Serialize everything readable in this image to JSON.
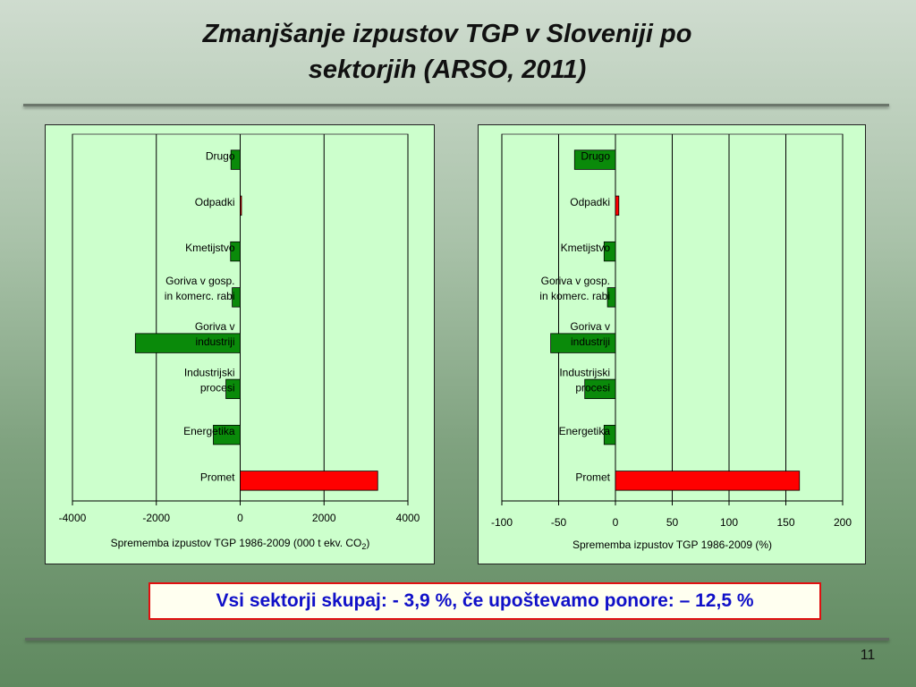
{
  "slide": {
    "title_line1": "Zmanjšanje izpustov TGP v Sloveniji po",
    "title_line2": "sektorjih (ARSO, 2011)",
    "summary": "Vsi sektorji skupaj: - 3,9 %, če upoštevamo ponore: – 12,5 %",
    "page_number": "11"
  },
  "colors": {
    "negative": "#0a8a0a",
    "positive": "#ff0000",
    "panel_bg": "#ccffcc"
  },
  "chart_data": [
    {
      "type": "bar",
      "orientation": "horizontal",
      "categories": [
        "Drugo",
        "Odpadki",
        "Kmetijstvo",
        "Goriva v gosp. in komerc. rabi",
        "Goriva v industriji",
        "Industrijski procesi",
        "Energetika",
        "Promet"
      ],
      "category_lines": [
        [
          "Drugo"
        ],
        [
          "Odpadki"
        ],
        [
          "Kmetijstvo"
        ],
        [
          "Goriva v gosp.",
          "in komerc. rabi"
        ],
        [
          "Goriva v",
          "industriji"
        ],
        [
          "Industrijski",
          "procesi"
        ],
        [
          "Energetika"
        ],
        [
          "Promet"
        ]
      ],
      "values": [
        -220,
        20,
        -230,
        -190,
        -2500,
        -340,
        -640,
        3280
      ],
      "xlabel": "Sprememba izpustov TGP 1986-2009 (000 t ekv. CO",
      "xlabel_sub": "2",
      "xlabel_end": ")",
      "xlim": [
        -4000,
        4000
      ],
      "xticks": [
        -4000,
        -2000,
        0,
        2000,
        4000
      ],
      "xtick_labels": [
        "-4000",
        "-2000",
        "0",
        "2000",
        "4000"
      ],
      "grid": true
    },
    {
      "type": "bar",
      "orientation": "horizontal",
      "categories": [
        "Drugo",
        "Odpadki",
        "Kmetijstvo",
        "Goriva v gosp. in komerc. rabi",
        "Goriva v industriji",
        "Industrijski procesi",
        "Energetika",
        "Promet"
      ],
      "category_lines": [
        [
          "Drugo"
        ],
        [
          "Odpadki"
        ],
        [
          "Kmetijstvo"
        ],
        [
          "Goriva v gosp.",
          "in komerc. rabi"
        ],
        [
          "Goriva v",
          "industriji"
        ],
        [
          "Industrijski",
          "procesi"
        ],
        [
          "Energetika"
        ],
        [
          "Promet"
        ]
      ],
      "values": [
        -36,
        3,
        -10,
        -7,
        -57,
        -27,
        -10,
        162
      ],
      "xlabel": "Sprememba izpustov TGP 1986-2009 (%)",
      "xlabel_sub": "",
      "xlabel_end": "",
      "xlim": [
        -100,
        200
      ],
      "xticks": [
        -100,
        -50,
        0,
        50,
        100,
        150,
        200
      ],
      "xtick_labels": [
        "-100",
        "-50",
        "0",
        "50",
        "100",
        "150",
        "200"
      ],
      "grid": true
    }
  ]
}
